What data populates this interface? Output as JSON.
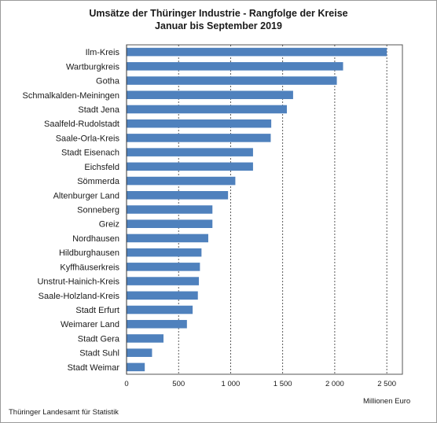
{
  "chart_data": {
    "type": "bar",
    "orientation": "horizontal",
    "title": "Umsätze der Thüringer Industrie - Rangfolge der Kreise",
    "subtitle": "Januar bis September 2019",
    "xlabel": "Millionen Euro",
    "xlim": [
      0,
      2650
    ],
    "xticks": [
      0,
      500,
      1000,
      1500,
      2000,
      2500
    ],
    "xtick_labels": [
      "0",
      "500",
      "1 000",
      "1 500",
      "2 000",
      "2 500"
    ],
    "grid": "vertical-dashed",
    "bar_color": "#4f81bd",
    "categories": [
      "Ilm-Kreis",
      "Wartburgkreis",
      "Gotha",
      "Schmalkalden-Meiningen",
      "Stadt Jena",
      "Saalfeld-Rudolstadt",
      "Saale-Orla-Kreis",
      "Stadt Eisenach",
      "Eichsfeld",
      "Sömmerda",
      "Altenburger Land",
      "Sonneberg",
      "Greiz",
      "Nordhausen",
      "Hildburghausen",
      "Kyffhäuserkreis",
      "Unstrut-Hainich-Kreis",
      "Saale-Holzland-Kreis",
      "Stadt Erfurt",
      "Weimarer Land",
      "Stadt Gera",
      "Stadt Suhl",
      "Stadt Weimar"
    ],
    "values": [
      2500,
      2080,
      2020,
      1600,
      1540,
      1390,
      1385,
      1215,
      1215,
      1045,
      975,
      825,
      825,
      785,
      720,
      705,
      695,
      685,
      635,
      580,
      355,
      245,
      175
    ]
  },
  "source": "Thüringer Landesamt für Statistik"
}
